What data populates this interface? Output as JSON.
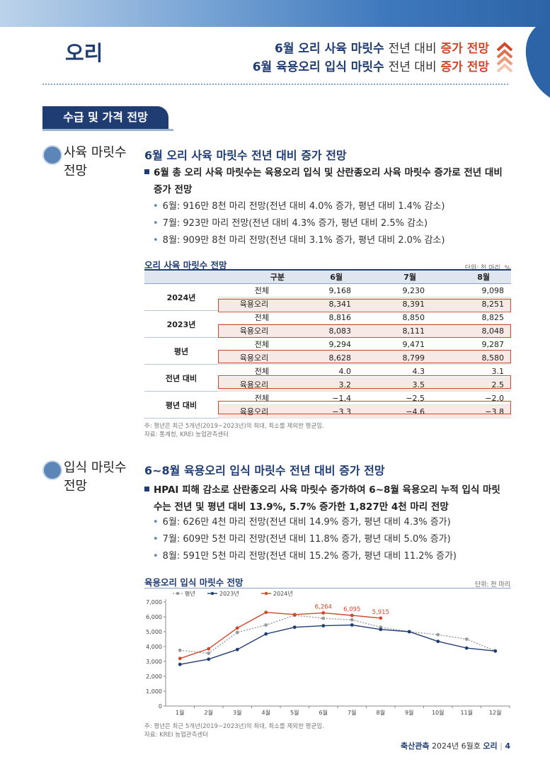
{
  "page": {
    "title": "오리",
    "headlines": [
      {
        "bold": "6월 오리 사육 마릿수",
        "plain": "전년 대비",
        "highlight": "증가 전망"
      },
      {
        "bold": "6월 육용오리 입식 마릿수",
        "plain": "전년 대비",
        "highlight": "증가 전망"
      }
    ],
    "section_tab": "수급 및 가격 전망"
  },
  "section1": {
    "label_line1": "사육 마릿수",
    "label_line2": "전망",
    "subtitle": "6월 오리 사육 마릿수 전년 대비 증가 전망",
    "main_line1": "6월 총 오리 사육 마릿수는 육용오리 입식 및 산란종오리 사육 마릿수 증가로 전년 대비",
    "main_line2": "증가 전망",
    "bullets": [
      "6월: 916만 8천 마리 전망(전년 대비 4.0% 증가, 평년 대비 1.4% 감소)",
      "7월: 923만 마리 전망(전년 대비 4.3% 증가, 평년 대비 2.5% 감소)",
      "8월: 909만 8천 마리 전망(전년 대비 3.1% 증가, 평년 대비 2.0% 감소)"
    ],
    "table_title": "오리 사육 마릿수 전망",
    "table_unit": "단위: 천 마리, %",
    "table_headers": [
      "구분",
      "6월",
      "7월",
      "8월"
    ],
    "table_groups": [
      {
        "name": "2024년",
        "rows": [
          {
            "label": "전체",
            "values": [
              "9,168",
              "9,230",
              "9,098"
            ]
          },
          {
            "label": "육용오리",
            "values": [
              "8,341",
              "8,391",
              "8,251"
            ]
          }
        ]
      },
      {
        "name": "2023년",
        "rows": [
          {
            "label": "전체",
            "values": [
              "8,816",
              "8,850",
              "8,825"
            ]
          },
          {
            "label": "육용오리",
            "values": [
              "8,083",
              "8,111",
              "8,048"
            ]
          }
        ]
      },
      {
        "name": "평년",
        "rows": [
          {
            "label": "전체",
            "values": [
              "9,294",
              "9,471",
              "9,287"
            ]
          },
          {
            "label": "육용오리",
            "values": [
              "8,628",
              "8,799",
              "8,580"
            ]
          }
        ]
      },
      {
        "name": "전년 대비",
        "rows": [
          {
            "label": "전체",
            "values": [
              "4.0",
              "4.3",
              "3.1"
            ]
          },
          {
            "label": "육용오리",
            "values": [
              "3.2",
              "3.5",
              "2.5"
            ]
          }
        ]
      },
      {
        "name": "평년 대비",
        "rows": [
          {
            "label": "전체",
            "values": [
              "−1.4",
              "−2.5",
              "−2.0"
            ]
          },
          {
            "label": "육용오리",
            "values": [
              "−3.3",
              "−4.6",
              "−3.8"
            ]
          }
        ]
      }
    ],
    "note1": "주: 평년은 최근 5개년(2019~2023년)의 최대, 최소를 제외한 평균임.",
    "note2": "자료: 통계청, KREI 농업관측센터"
  },
  "section2": {
    "label_line1": "입식 마릿수",
    "label_line2": "전망",
    "subtitle": "6~8월 육용오리 입식 마릿수 전년 대비 증가 전망",
    "main_line1": "HPAI 피해 감소로 산란종오리 사육 마릿수 증가하여 6~8월 육용오리 누적 입식 마릿",
    "main_line2": "수는 전년 및 평년 대비 13.9%, 5.7% 증가한 1,827만 4천 마리 전망",
    "bullets": [
      "6월: 626만 4천 마리 전망(전년 대비 14.9% 증가, 평년 대비 4.3% 증가)",
      "7월: 609만 5천 마리 전망(전년 대비 11.8% 증가, 평년 대비 5.0% 증가)",
      "8월: 591만 5천 마리 전망(전년 대비 15.2% 증가, 평년 대비 11.2% 증가)"
    ],
    "chart_title": "육용오리 입식 마릿수 전망",
    "chart_unit": "단위: 천 마리",
    "note1": "주: 평년은 최근 5개년(2019~2023년)의 최대, 최소를 제외한 평균임.",
    "note2": "자료: KREI 농업관측센터"
  },
  "footer": {
    "pub": "축산관측",
    "date": "2024년 6월호",
    "topic": "오리",
    "page": "4"
  },
  "colors": {
    "navy": "#1f3d72",
    "accent": "#d2482b",
    "avg": "#999999"
  },
  "chart_data": {
    "type": "line",
    "categories": [
      "1월",
      "2월",
      "3월",
      "4월",
      "5월",
      "6월",
      "7월",
      "8월",
      "9월",
      "10월",
      "11월",
      "12월"
    ],
    "ylim": [
      0,
      7000
    ],
    "yticks": [
      0,
      1000,
      2000,
      3000,
      4000,
      5000,
      6000,
      7000
    ],
    "ytick_labels": [
      "0",
      "1,000",
      "2,000",
      "3,000",
      "4,000",
      "5,000",
      "6,000",
      "7,000"
    ],
    "series": [
      {
        "name": "평년",
        "color": "#999999",
        "values": [
          3750,
          3550,
          4950,
          5450,
          6100,
          5900,
          5800,
          5300,
          5000,
          4800,
          4500,
          3700
        ]
      },
      {
        "name": "2023년",
        "color": "#1f3d72",
        "values": [
          2800,
          3150,
          3800,
          4850,
          5300,
          5400,
          5450,
          5150,
          5000,
          4350,
          3900,
          3700
        ]
      },
      {
        "name": "2024년",
        "color": "#d2482b",
        "values": [
          3200,
          3850,
          5250,
          6300,
          6150,
          6264,
          6095,
          5915,
          null,
          null,
          null,
          null
        ]
      }
    ],
    "data_labels": [
      {
        "series": "2024년",
        "index": 5,
        "text": "6,264"
      },
      {
        "series": "2024년",
        "index": 6,
        "text": "6,095"
      },
      {
        "series": "2024년",
        "index": 7,
        "text": "5,915"
      }
    ]
  }
}
